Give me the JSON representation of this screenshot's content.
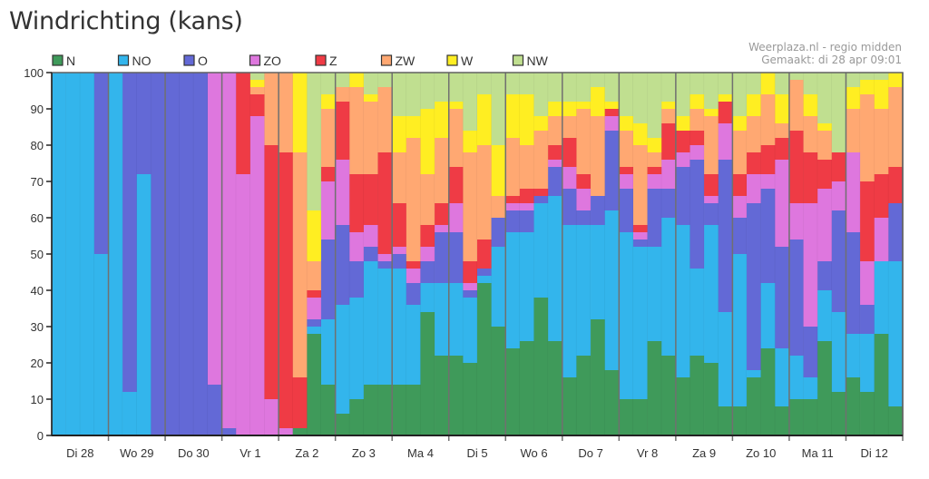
{
  "title": "Windrichting (kans)",
  "credit": {
    "line1": "Weerplaza.nl - regio midden",
    "line2": "Gemaakt: di 28 apr 09:01"
  },
  "chart_data": {
    "type": "bar",
    "stacked": true,
    "normalized_percent": true,
    "title": "Windrichting (kans)",
    "xlabel": "",
    "ylabel": "",
    "ylim": [
      0,
      100
    ],
    "yticks": [
      0,
      10,
      20,
      30,
      40,
      50,
      60,
      70,
      80,
      90,
      100
    ],
    "grid": false,
    "legend_position": "top-left",
    "bars_per_day": 4,
    "days": [
      "Di 28",
      "Wo 29",
      "Do 30",
      "Vr 1",
      "Za 2",
      "Zo 3",
      "Ma 4",
      "Di 5",
      "Wo 6",
      "Do 7",
      "Vr 8",
      "Za 9",
      "Zo 10",
      "Ma 11",
      "Di 12"
    ],
    "series_names": [
      "N",
      "NO",
      "O",
      "ZO",
      "Z",
      "ZW",
      "W",
      "NW"
    ],
    "colors": [
      "#3f9a5a",
      "#33b5ec",
      "#6369d6",
      "#de77de",
      "#ef3b45",
      "#ffa872",
      "#ffee22",
      "#c0df90"
    ],
    "bars": [
      [
        0,
        100,
        0,
        0,
        0,
        0,
        0,
        0
      ],
      [
        0,
        100,
        0,
        0,
        0,
        0,
        0,
        0
      ],
      [
        0,
        100,
        0,
        0,
        0,
        0,
        0,
        0
      ],
      [
        0,
        50,
        50,
        0,
        0,
        0,
        0,
        0
      ],
      [
        0,
        100,
        0,
        0,
        0,
        0,
        0,
        0
      ],
      [
        0,
        12,
        88,
        0,
        0,
        0,
        0,
        0
      ],
      [
        0,
        72,
        28,
        0,
        0,
        0,
        0,
        0
      ],
      [
        0,
        0,
        100,
        0,
        0,
        0,
        0,
        0
      ],
      [
        0,
        0,
        100,
        0,
        0,
        0,
        0,
        0
      ],
      [
        0,
        0,
        100,
        0,
        0,
        0,
        0,
        0
      ],
      [
        0,
        0,
        100,
        0,
        0,
        0,
        0,
        0
      ],
      [
        0,
        0,
        14,
        86,
        0,
        0,
        0,
        0
      ],
      [
        0,
        0,
        2,
        98,
        0,
        0,
        0,
        0
      ],
      [
        0,
        0,
        0,
        72,
        28,
        0,
        0,
        0
      ],
      [
        0,
        0,
        0,
        88,
        6,
        2,
        2,
        2
      ],
      [
        0,
        0,
        0,
        10,
        70,
        20,
        0,
        0
      ],
      [
        0,
        0,
        0,
        2,
        76,
        22,
        0,
        0
      ],
      [
        2,
        0,
        0,
        0,
        14,
        62,
        22,
        0
      ],
      [
        28,
        2,
        2,
        6,
        2,
        8,
        14,
        38
      ],
      [
        14,
        18,
        22,
        16,
        4,
        16,
        4,
        6
      ],
      [
        6,
        30,
        22,
        18,
        16,
        4,
        0,
        4
      ],
      [
        10,
        28,
        10,
        8,
        16,
        24,
        4,
        0
      ],
      [
        14,
        34,
        4,
        6,
        14,
        20,
        2,
        6
      ],
      [
        14,
        32,
        2,
        2,
        28,
        18,
        0,
        4
      ],
      [
        14,
        32,
        4,
        2,
        12,
        14,
        10,
        12
      ],
      [
        14,
        22,
        6,
        4,
        2,
        34,
        6,
        12
      ],
      [
        34,
        8,
        6,
        4,
        6,
        14,
        18,
        10
      ],
      [
        22,
        20,
        14,
        2,
        6,
        18,
        10,
        8
      ],
      [
        22,
        20,
        14,
        8,
        10,
        16,
        2,
        8
      ],
      [
        20,
        18,
        2,
        2,
        6,
        30,
        6,
        16
      ],
      [
        42,
        2,
        2,
        0,
        8,
        26,
        14,
        6
      ],
      [
        30,
        22,
        8,
        0,
        0,
        6,
        14,
        20
      ],
      [
        24,
        32,
        6,
        2,
        2,
        16,
        12,
        6
      ],
      [
        26,
        30,
        6,
        2,
        4,
        12,
        14,
        6
      ],
      [
        38,
        26,
        2,
        0,
        2,
        16,
        4,
        12
      ],
      [
        26,
        40,
        8,
        2,
        4,
        8,
        4,
        8
      ],
      [
        16,
        42,
        10,
        6,
        8,
        6,
        4,
        8
      ],
      [
        22,
        36,
        4,
        6,
        4,
        18,
        2,
        8
      ],
      [
        32,
        26,
        8,
        0,
        0,
        22,
        8,
        4
      ],
      [
        18,
        44,
        22,
        4,
        2,
        0,
        2,
        8
      ],
      [
        10,
        46,
        12,
        4,
        2,
        10,
        4,
        12
      ],
      [
        10,
        42,
        2,
        2,
        2,
        22,
        6,
        14
      ],
      [
        26,
        26,
        16,
        4,
        2,
        4,
        4,
        18
      ],
      [
        22,
        38,
        8,
        8,
        10,
        4,
        2,
        8
      ],
      [
        16,
        42,
        16,
        4,
        6,
        0,
        4,
        12
      ],
      [
        22,
        24,
        30,
        4,
        4,
        6,
        4,
        6
      ],
      [
        20,
        38,
        6,
        2,
        6,
        16,
        2,
        10
      ],
      [
        8,
        26,
        42,
        10,
        6,
        0,
        2,
        6
      ],
      [
        8,
        42,
        10,
        6,
        6,
        12,
        4,
        12
      ],
      [
        16,
        2,
        46,
        8,
        6,
        10,
        6,
        6
      ],
      [
        24,
        18,
        26,
        4,
        8,
        14,
        6,
        0
      ],
      [
        8,
        16,
        28,
        24,
        6,
        4,
        8,
        6
      ],
      [
        10,
        12,
        32,
        10,
        20,
        14,
        0,
        2
      ],
      [
        10,
        6,
        14,
        34,
        14,
        10,
        6,
        6
      ],
      [
        26,
        14,
        8,
        20,
        8,
        8,
        2,
        14
      ],
      [
        12,
        22,
        28,
        8,
        8,
        0,
        0,
        22
      ],
      [
        16,
        12,
        28,
        22,
        0,
        12,
        6,
        4
      ],
      [
        12,
        16,
        8,
        12,
        22,
        24,
        4,
        2
      ],
      [
        28,
        20,
        0,
        12,
        12,
        18,
        8,
        2
      ],
      [
        8,
        40,
        16,
        0,
        10,
        22,
        4,
        0
      ]
    ]
  }
}
